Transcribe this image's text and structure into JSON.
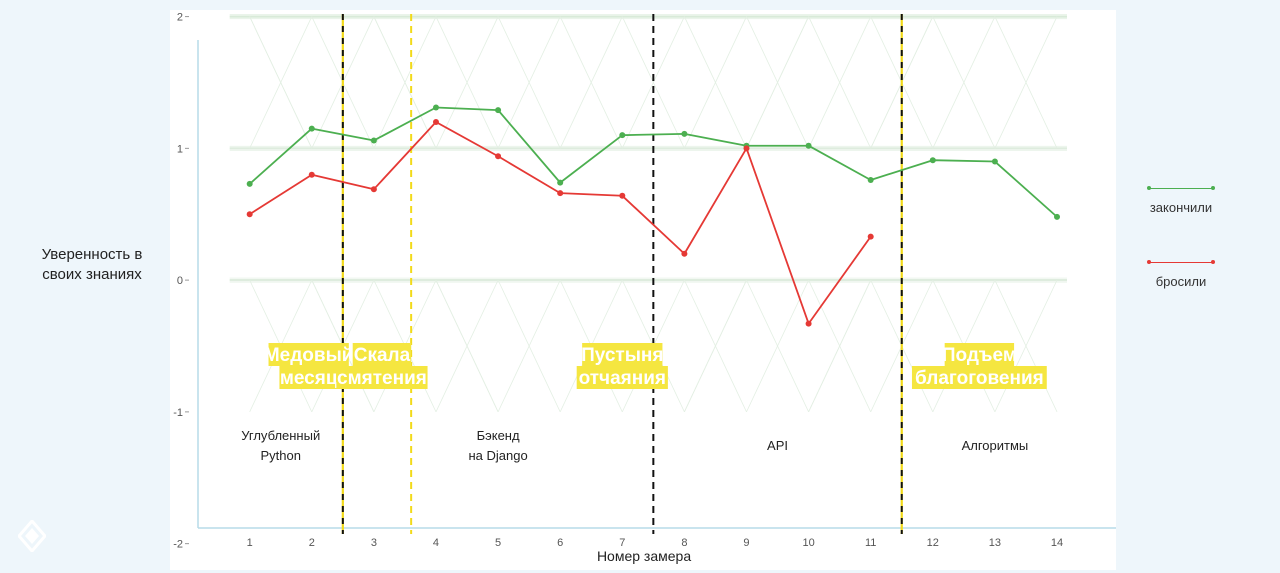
{
  "ylabel_lines": [
    "Уверенность в",
    "своих знаниях"
  ],
  "legend": [
    {
      "label": "закончили",
      "color": "#4caf50"
    },
    {
      "label": "бросили",
      "color": "#e53935"
    }
  ],
  "logo_icon": "diamond-logo-icon",
  "chart_data": {
    "type": "line",
    "x": [
      1,
      2,
      3,
      4,
      5,
      6,
      7,
      8,
      9,
      10,
      11,
      12,
      13,
      14
    ],
    "xlabel": "Номер замера",
    "ylabel": "Уверенность в своих знаниях",
    "xlim": [
      0.2,
      14.95
    ],
    "ylim": [
      -2.2,
      2.05
    ],
    "yticks": [
      2,
      1,
      0,
      -1,
      -2
    ],
    "xticks": [
      1,
      2,
      3,
      4,
      5,
      6,
      7,
      8,
      9,
      10,
      11,
      12,
      13,
      14
    ],
    "grid": false,
    "legend_position": "right",
    "series": [
      {
        "name": "закончили",
        "color": "#4caf50",
        "x": [
          1,
          2,
          3,
          4,
          5,
          6,
          7,
          8,
          9,
          10,
          11,
          12,
          13,
          14
        ],
        "y": [
          0.73,
          1.15,
          1.06,
          1.31,
          1.29,
          0.74,
          1.1,
          1.11,
          1.02,
          1.02,
          0.76,
          0.91,
          0.9,
          0.48
        ]
      },
      {
        "name": "бросили",
        "color": "#e53935",
        "x": [
          1,
          2,
          3,
          4,
          5,
          6,
          7,
          8,
          9,
          10,
          11
        ],
        "y": [
          0.5,
          0.8,
          0.69,
          1.2,
          0.94,
          0.66,
          0.64,
          0.2,
          1.0,
          -0.33,
          0.33
        ]
      }
    ],
    "dividers": [
      {
        "x": 2.5,
        "color": "#111111",
        "style": "dash-mixed"
      },
      {
        "x": 3.6,
        "color": "#f2da1a",
        "style": "dash"
      },
      {
        "x": 7.5,
        "color": "#111111",
        "style": "dash"
      },
      {
        "x": 11.5,
        "color": "#111111",
        "style": "dash-mixed"
      }
    ],
    "phases": [
      {
        "lines": [
          "Медовый",
          "месяц"
        ],
        "x": 1.95
      },
      {
        "lines": [
          "Скала",
          "смятения"
        ],
        "x": 3.13
      },
      {
        "lines": [
          "Пустыня",
          "отчаяния"
        ],
        "x": 7.0
      },
      {
        "lines": [
          "Подъем",
          "благоговения"
        ],
        "x": 12.75
      }
    ],
    "phase_color": "#f5e640",
    "sections": [
      {
        "lines": [
          "Углубленный",
          "Python"
        ],
        "x": 1.5
      },
      {
        "lines": [
          "Бэкенд",
          "на Django"
        ],
        "x": 5.0
      },
      {
        "lines": [
          "API"
        ],
        "x": 9.5
      },
      {
        "lines": [
          "Алгоритмы"
        ],
        "x": 13.0
      }
    ]
  }
}
